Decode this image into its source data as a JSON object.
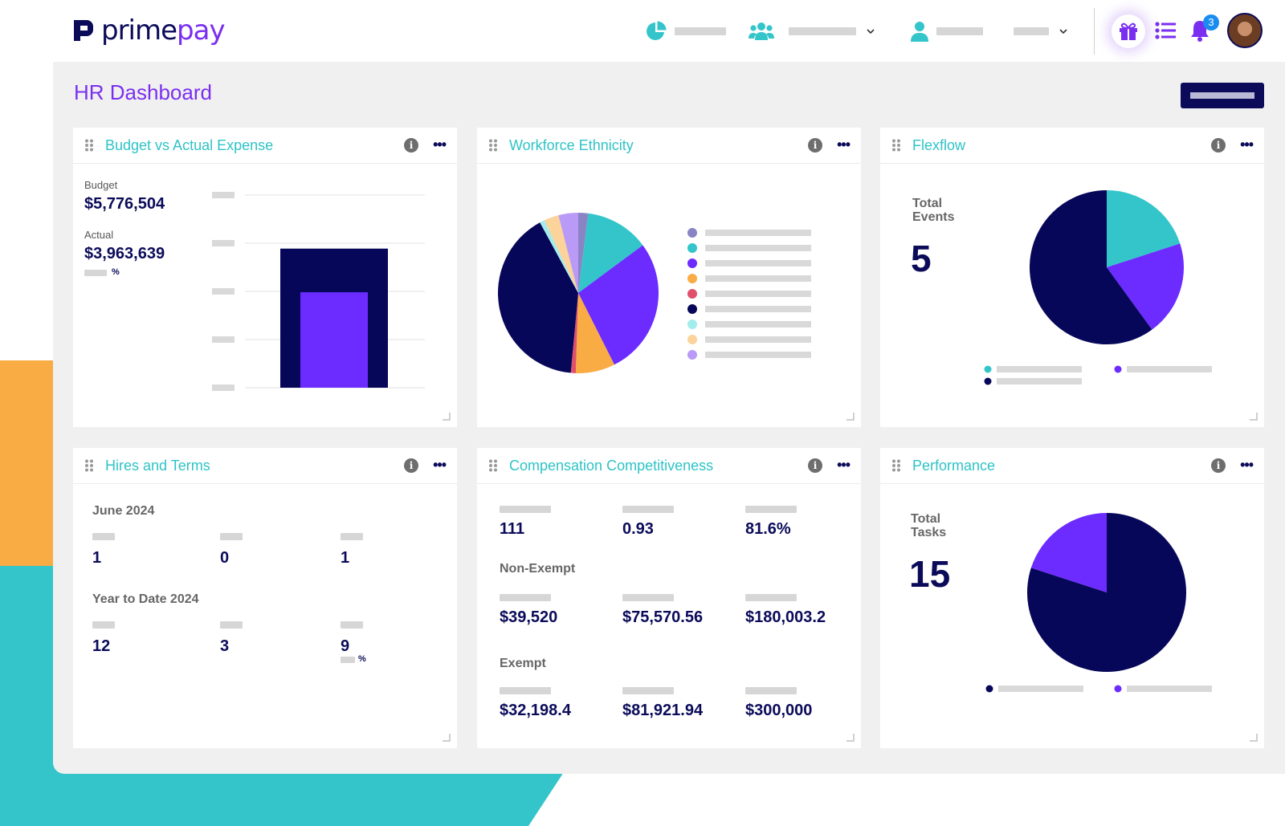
{
  "brand": {
    "part1": "prime",
    "part2": "pay"
  },
  "header": {
    "notification_count": "3"
  },
  "page": {
    "title": "HR Dashboard"
  },
  "cards": {
    "budget": {
      "title": "Budget vs Actual Expense",
      "budget_label": "Budget",
      "budget_value": "$5,776,504",
      "actual_label": "Actual",
      "actual_value": "$3,963,639",
      "pct_symbol": "%"
    },
    "ethnicity": {
      "title": "Workforce Ethnicity"
    },
    "flexflow": {
      "title": "Flexflow",
      "kpi_label_line1": "Total",
      "kpi_label_line2": "Events",
      "kpi_value": "5"
    },
    "hires": {
      "title": "Hires and Terms",
      "period1": "June 2024",
      "period1_values": [
        "1",
        "0",
        "1"
      ],
      "period2": "Year to Date 2024",
      "period2_values": [
        "12",
        "3",
        "9"
      ],
      "pct_symbol": "%"
    },
    "comp": {
      "title": "Compensation Competitiveness",
      "row1_values": [
        "111",
        "0.93",
        "81.6%"
      ],
      "section2": "Non-Exempt",
      "row2_values": [
        "$39,520",
        "$75,570.56",
        "$180,003.2"
      ],
      "section3": "Exempt",
      "row3_values": [
        "$32,198.4",
        "$81,921.94",
        "$300,000"
      ]
    },
    "performance": {
      "title": "Performance",
      "kpi_label_line1": "Total",
      "kpi_label_line2": "Tasks",
      "kpi_value": "15"
    }
  },
  "chart_data": [
    {
      "type": "bar",
      "chart": "budget-vs-actual",
      "series": [
        {
          "value": 5776504,
          "color": "#07075a"
        },
        {
          "value": 3963639,
          "color": "#6c2bff"
        }
      ],
      "ylim": [
        0,
        8000000
      ],
      "grid": true
    },
    {
      "type": "pie",
      "chart": "workforce-ethnicity",
      "values": [
        2,
        13,
        28,
        8,
        1,
        41,
        1,
        3,
        4
      ],
      "colors": [
        "#8a84c4",
        "#33c5ca",
        "#6c2bff",
        "#f9ac43",
        "#e0506a",
        "#07075a",
        "#a3ecec",
        "#fbd39b",
        "#b99af7"
      ]
    },
    {
      "type": "pie",
      "chart": "flexflow",
      "values": [
        20,
        20,
        60
      ],
      "colors": [
        "#33c5ca",
        "#6c2bff",
        "#07075a"
      ]
    },
    {
      "type": "pie",
      "chart": "performance",
      "values": [
        80,
        20
      ],
      "colors": [
        "#07075a",
        "#6c2bff"
      ]
    }
  ]
}
